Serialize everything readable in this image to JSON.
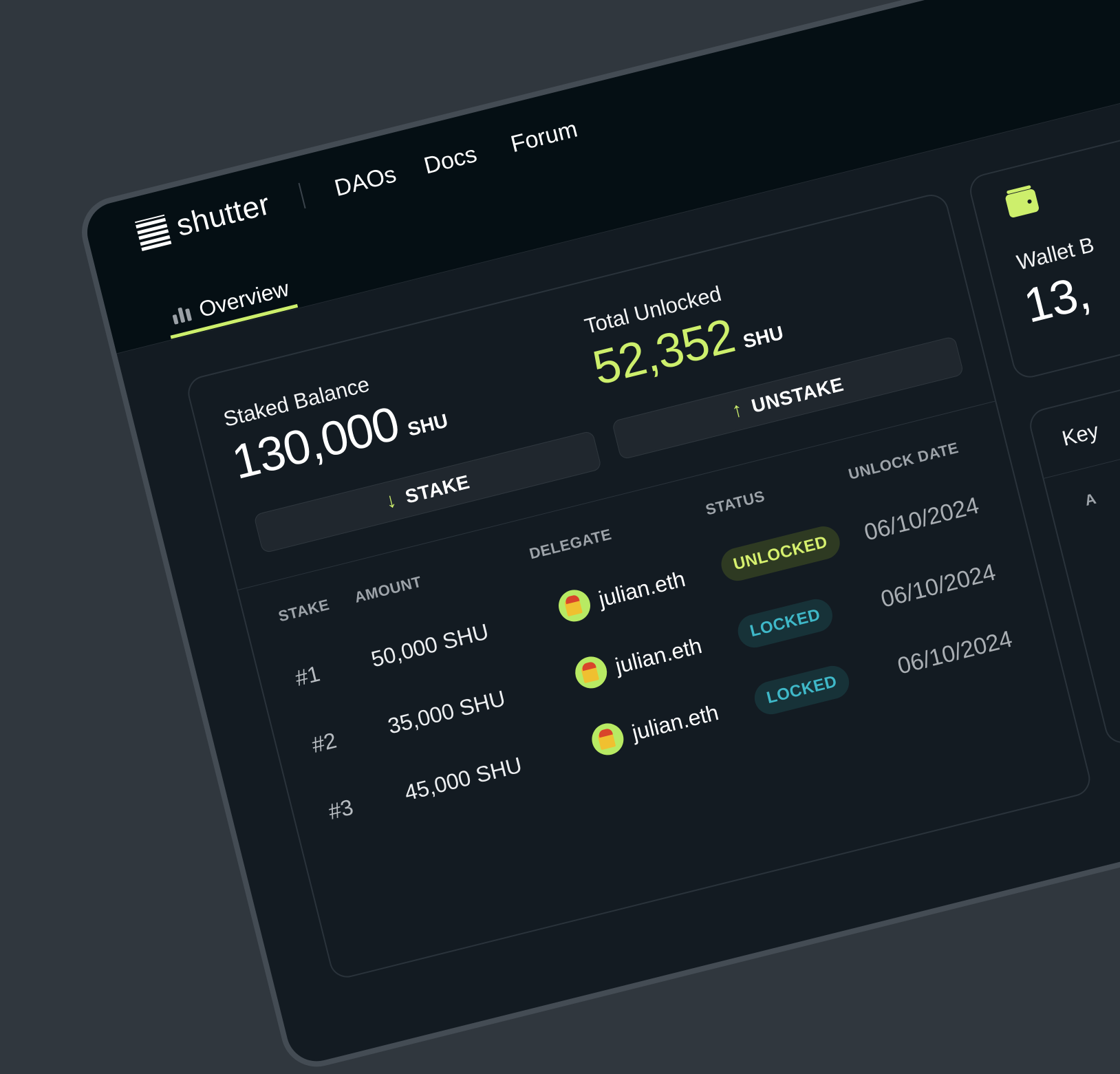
{
  "brand": {
    "name": "shutter",
    "icon": "shutter-logo-icon"
  },
  "nav": [
    {
      "label": "DAOs"
    },
    {
      "label": "Docs"
    },
    {
      "label": "Forum"
    }
  ],
  "tabs": [
    {
      "label": "Overview",
      "icon": "bar-chart-icon",
      "active": true
    }
  ],
  "colors": {
    "accent": "#cdef6c",
    "locked": "#3fb8c8",
    "background": "#131b22",
    "header": "#050f14"
  },
  "staked": {
    "label": "Staked Balance",
    "value": "130,000",
    "unit": "SHU",
    "button": "STAKE",
    "button_icon": "arrow-down-icon"
  },
  "unlocked": {
    "label": "Total Unlocked",
    "value": "52,352",
    "unit": "SHU",
    "button": "UNSTAKE",
    "button_icon": "arrow-up-icon"
  },
  "table": {
    "headers": [
      "STAKE",
      "AMOUNT",
      "DELEGATE",
      "STATUS",
      "UNLOCK DATE"
    ],
    "rows": [
      {
        "stake": "#1",
        "amount": "50,000 SHU",
        "delegate": "julian.eth",
        "status": "UNLOCKED",
        "date": "06/10/2024"
      },
      {
        "stake": "#2",
        "amount": "35,000 SHU",
        "delegate": "julian.eth",
        "status": "LOCKED",
        "date": "06/10/2024"
      },
      {
        "stake": "#3",
        "amount": "45,000 SHU",
        "delegate": "julian.eth",
        "status": "LOCKED",
        "date": "06/10/2024"
      }
    ]
  },
  "wallet": {
    "label": "Wallet B",
    "value": "13,",
    "icon": "wallet-icon"
  },
  "keyper": {
    "label": "Key",
    "col": "A"
  }
}
